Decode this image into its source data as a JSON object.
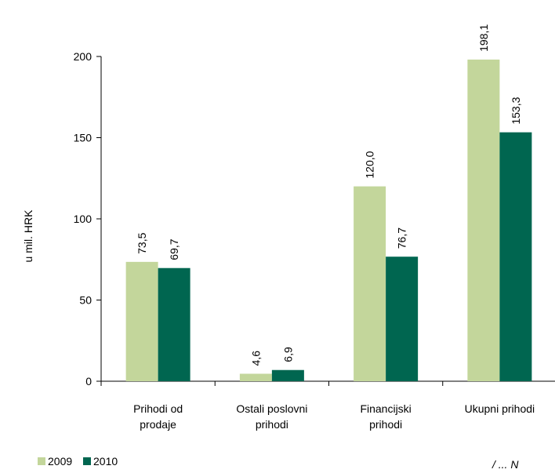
{
  "chart_data": {
    "type": "bar",
    "ylabel": "u mil. HRK",
    "ylim": [
      0,
      200
    ],
    "yticks": [
      0,
      50,
      100,
      150,
      200
    ],
    "categories": [
      [
        "Prihodi od",
        "prodaje"
      ],
      [
        "Ostali poslovni",
        "prihodi"
      ],
      [
        "Financijski",
        "prihodi"
      ],
      [
        "Ukupni prihodi"
      ]
    ],
    "series": [
      {
        "name": "2009",
        "color": "#c3d69b",
        "values": [
          73.5,
          4.6,
          120.0,
          198.1
        ],
        "labels": [
          "73,5",
          "4,6",
          "120,0",
          "198,1"
        ]
      },
      {
        "name": "2010",
        "color": "#006650",
        "values": [
          69.7,
          6.9,
          76.7,
          153.3
        ],
        "labels": [
          "69,7",
          "6,9",
          "76,7",
          "153,3"
        ]
      }
    ],
    "legend": "bottom-left",
    "grid": false
  },
  "footer": {
    "note": "/ ... N"
  }
}
